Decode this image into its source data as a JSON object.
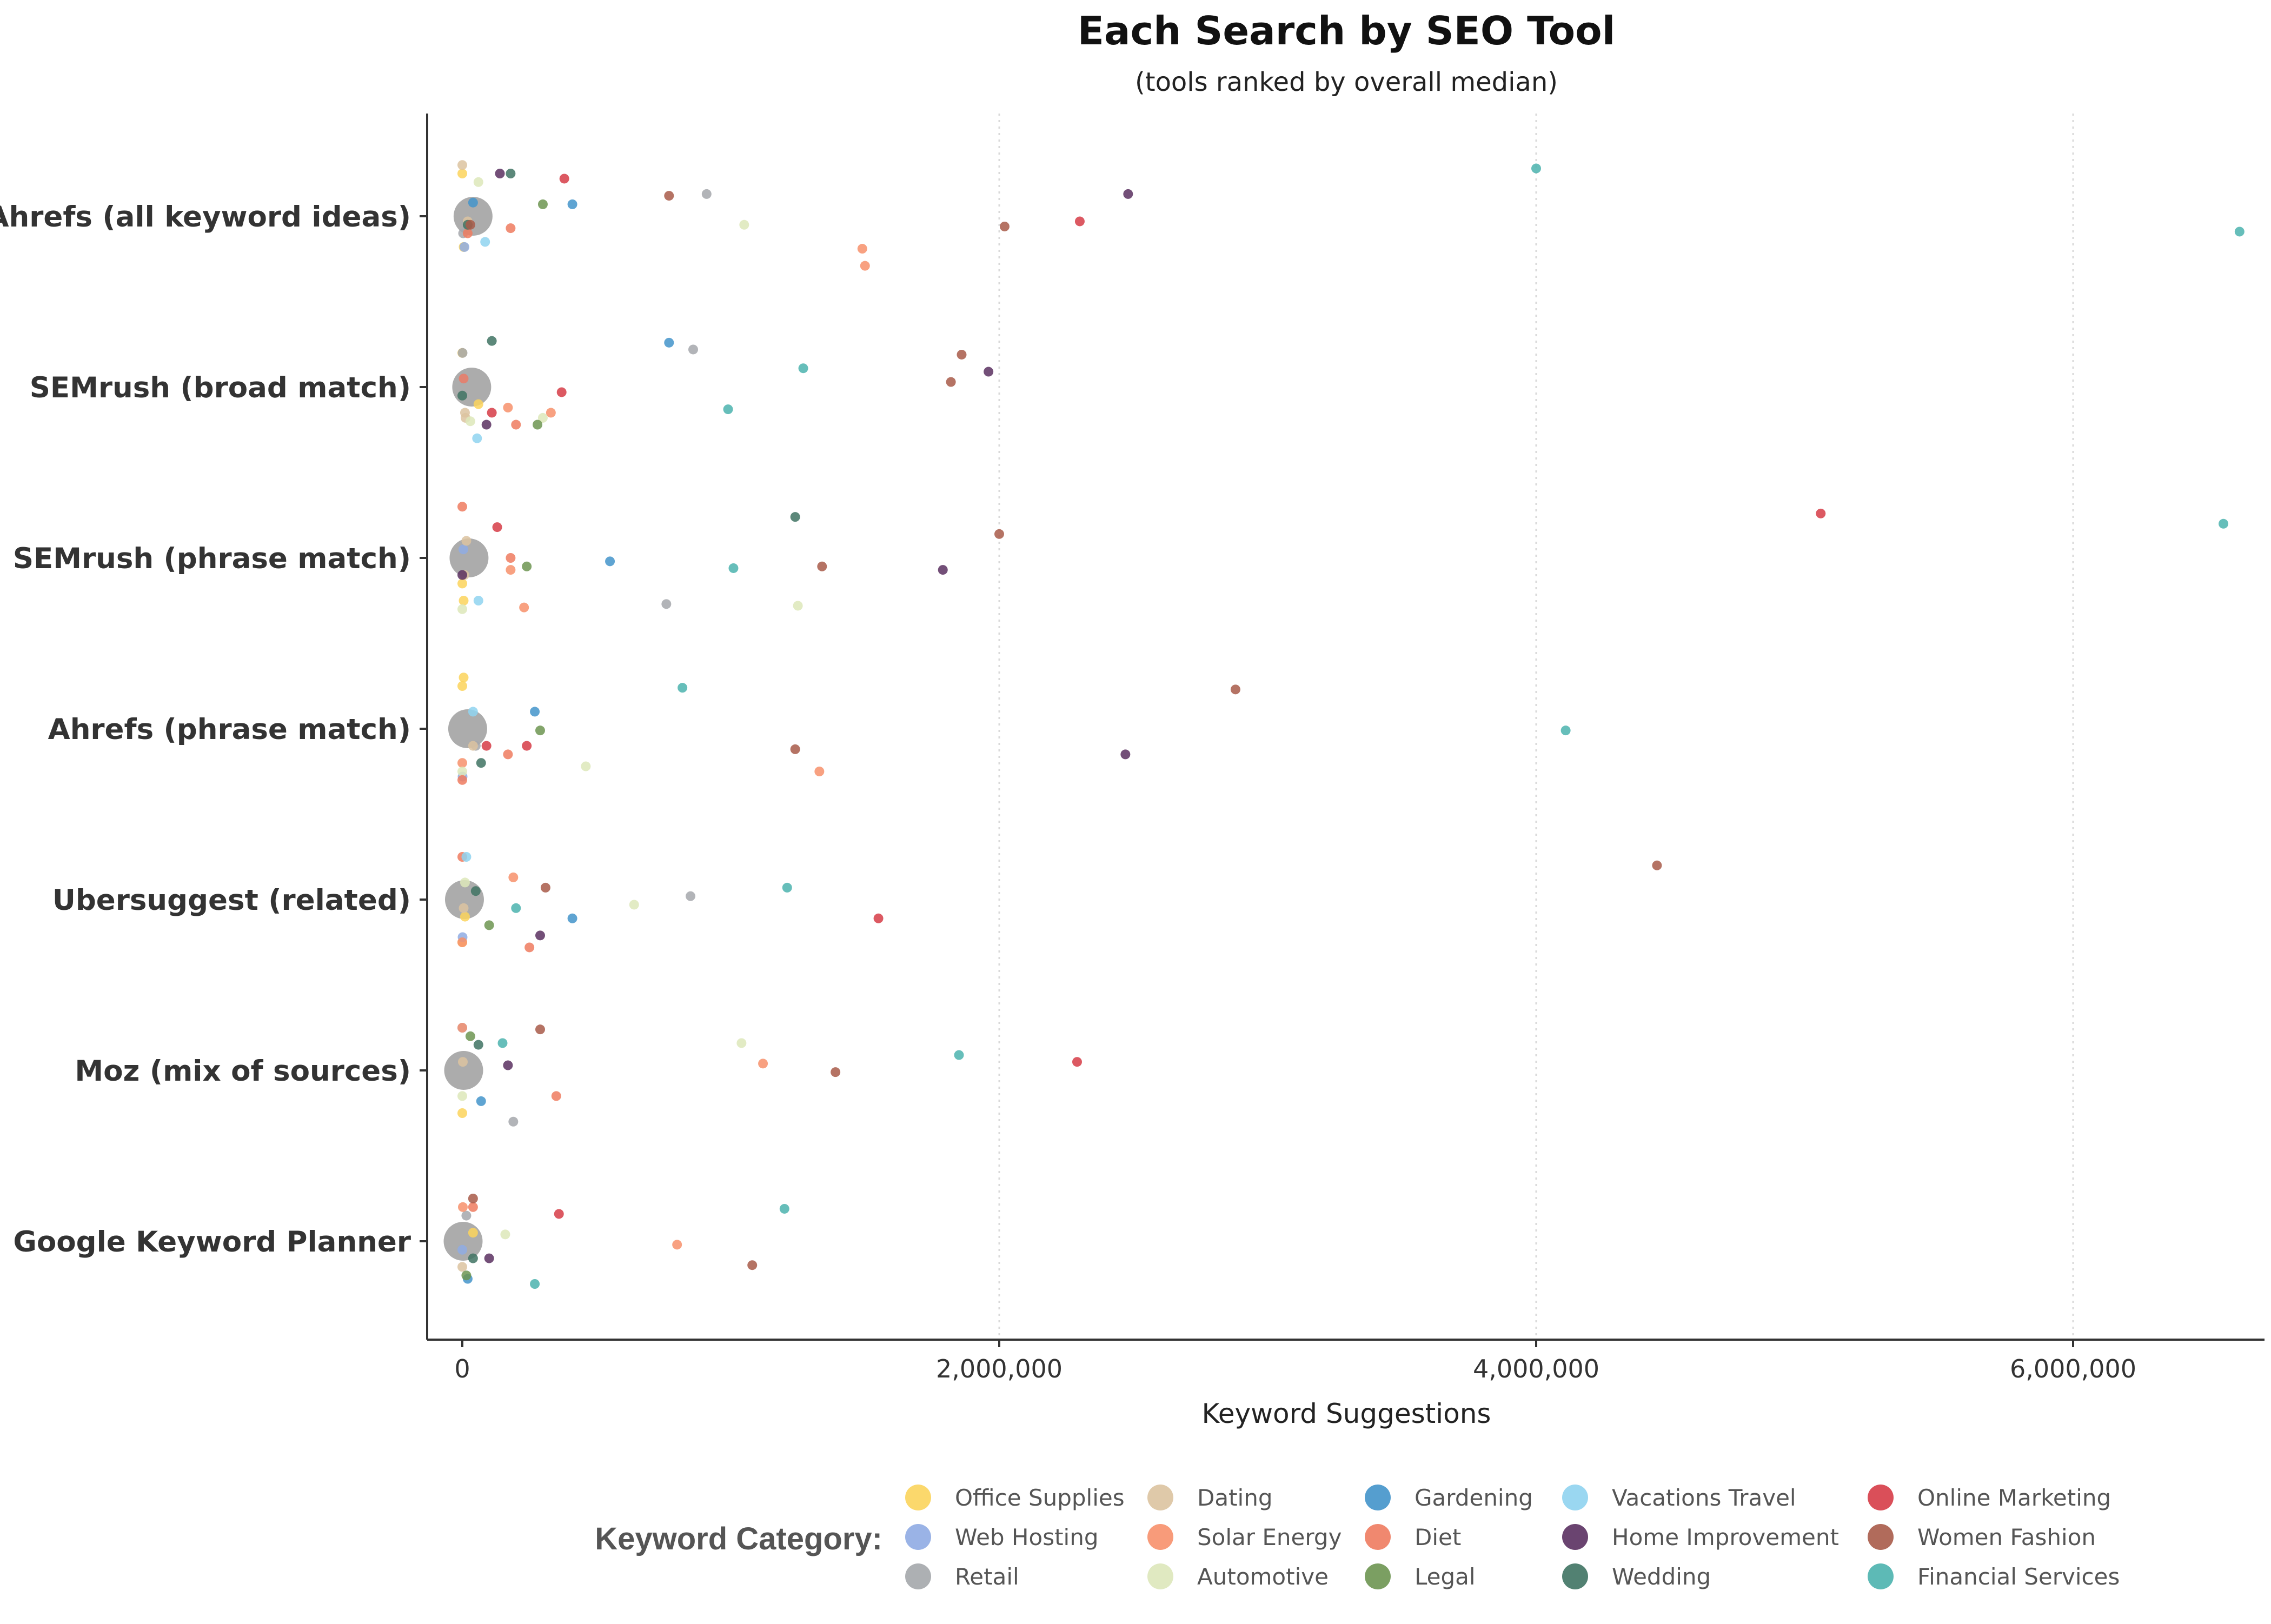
{
  "chart_data": {
    "type": "scatter",
    "title": "Each Search by SEO Tool",
    "subtitle": "(tools ranked by overall median)",
    "xlabel": "Keyword Suggestions",
    "ylabel": "",
    "xlim": [
      -60000,
      6700000
    ],
    "x_ticks": [
      0,
      2000000,
      4000000,
      6000000
    ],
    "x_tick_labels": [
      "0",
      "2,000,000",
      "4,000,000",
      "6,000,000"
    ],
    "grid": "vertical dotted at major x ticks",
    "legend_position": "bottom",
    "legend_title": "Keyword Category:",
    "categories": [
      "Ahrefs (all keyword ideas)",
      "SEMrush (broad match)",
      "SEMrush (phrase match)",
      "Ahrefs (phrase match)",
      "Ubersuggest (related)",
      "Moz (mix of sources)",
      "Google Keyword Planner"
    ],
    "median_marker_color": "#9e9e9e",
    "medians": [
      40000,
      35000,
      25000,
      20000,
      8000,
      5000,
      3000
    ],
    "series": [
      {
        "name": "Office Supplies",
        "color": "#fbd45c",
        "points": [
          [
            0,
            -0.25
          ],
          [
            60000,
            0.1
          ],
          [
            5000,
            0.25
          ],
          [
            0,
            -0.25
          ],
          [
            10000,
            0.1
          ],
          [
            0,
            0.25
          ],
          [
            40000,
            -0.05
          ],
          [
            5000,
            0.18
          ],
          [
            0,
            -0.2
          ],
          [
            0,
            0.15
          ],
          [
            5000,
            -0.3
          ],
          [
            0,
            0.25
          ]
        ]
      },
      {
        "name": "Web Hosting",
        "color": "#8fabe3",
        "points": [
          [
            8000,
            0.18
          ],
          [
            5000,
            -0.05
          ],
          [
            4000,
            -0.05
          ],
          [
            1000,
            0.28
          ],
          [
            1000,
            0.22
          ],
          [
            0,
            -0.25
          ],
          [
            0,
            0.05
          ]
        ]
      },
      {
        "name": "Retail",
        "color": "#a4a7ab",
        "points": [
          [
            910000,
            -0.13
          ],
          [
            860000,
            -0.22
          ],
          [
            760000,
            0.27
          ],
          [
            50000,
            0.1
          ],
          [
            850000,
            -0.02
          ],
          [
            190000,
            0.3
          ],
          [
            15000,
            -0.15
          ],
          [
            3000,
            0.1
          ],
          [
            1000,
            -0.2
          ]
        ]
      },
      {
        "name": "Dating",
        "color": "#dcc3a0",
        "points": [
          [
            20000,
            0.03
          ],
          [
            10000,
            0.15
          ],
          [
            15000,
            -0.1
          ],
          [
            40000,
            0.1
          ],
          [
            5000,
            0.05
          ],
          [
            2000,
            -0.05
          ],
          [
            0,
            0.15
          ],
          [
            0,
            -0.3
          ],
          [
            12000,
            0.18
          ],
          [
            8000,
            0.1
          ]
        ]
      },
      {
        "name": "Solar Energy",
        "color": "#f7906b",
        "points": [
          [
            1500000,
            0.29
          ],
          [
            330000,
            0.15
          ],
          [
            180000,
            0.07
          ],
          [
            1330000,
            0.25
          ],
          [
            190000,
            -0.13
          ],
          [
            1120000,
            -0.04
          ],
          [
            800000,
            0.02
          ],
          [
            1490000,
            0.19
          ],
          [
            170000,
            0.12
          ],
          [
            230000,
            0.29
          ],
          [
            0,
            0.2
          ],
          [
            0,
            0.25
          ],
          [
            0,
            -0.25
          ],
          [
            2000,
            -0.2
          ]
        ]
      },
      {
        "name": "Automotive",
        "color": "#dde7ba",
        "points": [
          [
            1050000,
            0.05
          ],
          [
            300000,
            0.18
          ],
          [
            1250000,
            0.28
          ],
          [
            460000,
            0.22
          ],
          [
            640000,
            0.03
          ],
          [
            1040000,
            -0.16
          ],
          [
            160000,
            -0.04
          ],
          [
            60000,
            -0.2
          ],
          [
            30000,
            0.2
          ],
          [
            0,
            0.3
          ],
          [
            0,
            0.25
          ],
          [
            10000,
            -0.1
          ],
          [
            0,
            0.15
          ]
        ]
      },
      {
        "name": "Gardening",
        "color": "#4394ca",
        "points": [
          [
            410000,
            -0.07
          ],
          [
            770000,
            -0.26
          ],
          [
            550000,
            0.02
          ],
          [
            270000,
            -0.1
          ],
          [
            410000,
            0.11
          ],
          [
            70000,
            0.18
          ],
          [
            20000,
            0.22
          ],
          [
            40000,
            -0.08
          ]
        ]
      },
      {
        "name": "Diet",
        "color": "#ee7b5f",
        "points": [
          [
            180000,
            0.07
          ],
          [
            200000,
            0.22
          ],
          [
            180000,
            0.0
          ],
          [
            170000,
            0.15
          ],
          [
            250000,
            0.28
          ],
          [
            350000,
            0.15
          ],
          [
            40000,
            -0.2
          ],
          [
            20000,
            0.1
          ],
          [
            5000,
            -0.05
          ],
          [
            0,
            -0.3
          ],
          [
            0,
            0.3
          ],
          [
            0,
            -0.25
          ]
        ]
      },
      {
        "name": "Legal",
        "color": "#6d9551",
        "points": [
          [
            300000,
            -0.07
          ],
          [
            280000,
            0.22
          ],
          [
            240000,
            0.05
          ],
          [
            290000,
            0.01
          ],
          [
            100000,
            0.15
          ],
          [
            30000,
            -0.2
          ],
          [
            15000,
            0.2
          ]
        ]
      },
      {
        "name": "Vacations Travel",
        "color": "#8fd3f0",
        "points": [
          [
            85000,
            0.15
          ],
          [
            55000,
            0.3
          ],
          [
            60000,
            0.25
          ],
          [
            40000,
            -0.1
          ],
          [
            15000,
            -0.25
          ]
        ]
      },
      {
        "name": "Home Improvement",
        "color": "#5a3060",
        "points": [
          [
            2480000,
            -0.13
          ],
          [
            1960000,
            -0.09
          ],
          [
            1790000,
            0.07
          ],
          [
            2470000,
            0.15
          ],
          [
            290000,
            0.21
          ],
          [
            170000,
            -0.03
          ],
          [
            100000,
            0.1
          ],
          [
            140000,
            -0.25
          ],
          [
            90000,
            0.22
          ],
          [
            0,
            0.1
          ]
        ]
      },
      {
        "name": "Wedding",
        "color": "#3f7363",
        "points": [
          [
            180000,
            -0.25
          ],
          [
            110000,
            -0.27
          ],
          [
            1240000,
            -0.24
          ],
          [
            70000,
            0.2
          ],
          [
            50000,
            -0.05
          ],
          [
            60000,
            -0.15
          ],
          [
            40000,
            0.1
          ],
          [
            20000,
            0.05
          ],
          [
            0,
            0.05
          ]
        ]
      },
      {
        "name": "Online Marketing",
        "color": "#d63c47",
        "points": [
          [
            2300000,
            0.03
          ],
          [
            370000,
            0.03
          ],
          [
            5060000,
            -0.26
          ],
          [
            240000,
            0.1
          ],
          [
            1550000,
            0.11
          ],
          [
            2290000,
            -0.05
          ],
          [
            360000,
            -0.16
          ],
          [
            380000,
            -0.22
          ],
          [
            110000,
            0.15
          ],
          [
            130000,
            -0.18
          ],
          [
            90000,
            0.1
          ]
        ]
      },
      {
        "name": "Women Fashion",
        "color": "#a85b49",
        "points": [
          [
            2020000,
            0.06
          ],
          [
            1860000,
            -0.19
          ],
          [
            1340000,
            0.05
          ],
          [
            2880000,
            -0.23
          ],
          [
            4450000,
            -0.2
          ],
          [
            1390000,
            0.01
          ],
          [
            1080000,
            0.14
          ],
          [
            770000,
            -0.12
          ],
          [
            1820000,
            -0.03
          ],
          [
            2000000,
            -0.14
          ],
          [
            1240000,
            0.12
          ],
          [
            310000,
            -0.07
          ],
          [
            290000,
            -0.24
          ],
          [
            40000,
            -0.25
          ],
          [
            30000,
            0.05
          ]
        ]
      },
      {
        "name": "Financial Services",
        "color": "#4bb3ae",
        "points": [
          [
            6620000,
            0.09
          ],
          [
            1270000,
            -0.11
          ],
          [
            1010000,
            0.06
          ],
          [
            4110000,
            0.01
          ],
          [
            1210000,
            -0.07
          ],
          [
            1850000,
            -0.09
          ],
          [
            1200000,
            -0.19
          ],
          [
            4000000,
            -0.28
          ],
          [
            990000,
            0.13
          ],
          [
            6560000,
            -0.2
          ],
          [
            820000,
            -0.24
          ],
          [
            200000,
            0.05
          ],
          [
            150000,
            -0.16
          ],
          [
            270000,
            0.25
          ]
        ]
      }
    ]
  }
}
